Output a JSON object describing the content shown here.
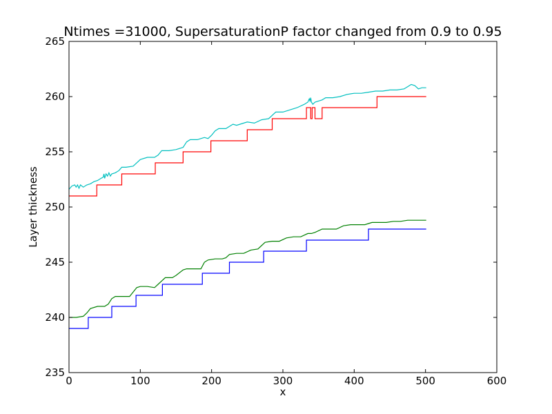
{
  "chart_data": {
    "type": "line",
    "title": "Ntimes =31000, SupersaturationP factor changed from 0.9 to 0.95",
    "xlabel": "x",
    "ylabel": "Layer thickness",
    "xlim": [
      0,
      600
    ],
    "ylim": [
      235,
      265
    ],
    "xticks": [
      0,
      100,
      200,
      300,
      400,
      500,
      600
    ],
    "yticks": [
      235,
      240,
      245,
      250,
      255,
      260,
      265
    ],
    "grid": false,
    "series": [
      {
        "name": "blue-step",
        "color": "#0000ff",
        "style": "step",
        "steps": [
          {
            "x": 0,
            "y": 239
          },
          {
            "x": 27,
            "y": 240
          },
          {
            "x": 60,
            "y": 241
          },
          {
            "x": 94,
            "y": 242
          },
          {
            "x": 131,
            "y": 243
          },
          {
            "x": 187,
            "y": 244
          },
          {
            "x": 225,
            "y": 245
          },
          {
            "x": 273,
            "y": 246
          },
          {
            "x": 333,
            "y": 247
          },
          {
            "x": 420,
            "y": 248
          }
        ],
        "x_end": 501
      },
      {
        "name": "green-smooth",
        "color": "#008000",
        "style": "line",
        "x": [
          0,
          10,
          20,
          25,
          30,
          40,
          50,
          55,
          60,
          65,
          75,
          85,
          90,
          95,
          100,
          110,
          120,
          125,
          130,
          135,
          145,
          150,
          160,
          165,
          175,
          185,
          190,
          195,
          205,
          215,
          220,
          225,
          235,
          245,
          255,
          265,
          270,
          275,
          285,
          295,
          305,
          315,
          325,
          335,
          340,
          345,
          355,
          365,
          375,
          385,
          395,
          405,
          415,
          420,
          425,
          435,
          445,
          455,
          465,
          475,
          485,
          495,
          501
        ],
        "y": [
          240.0,
          240.0,
          240.1,
          240.4,
          240.8,
          241.0,
          241.0,
          241.2,
          241.7,
          241.9,
          241.9,
          241.9,
          242.3,
          242.7,
          242.8,
          242.8,
          242.7,
          243.0,
          243.3,
          243.6,
          243.6,
          243.8,
          244.3,
          244.4,
          244.4,
          244.4,
          245.0,
          245.2,
          245.3,
          245.3,
          245.4,
          245.7,
          245.8,
          245.8,
          246.1,
          246.2,
          246.5,
          246.8,
          246.9,
          246.9,
          247.2,
          247.3,
          247.3,
          247.6,
          247.6,
          247.7,
          248.0,
          248.0,
          248.0,
          248.3,
          248.4,
          248.4,
          248.4,
          248.5,
          248.6,
          248.6,
          248.6,
          248.7,
          248.7,
          248.8,
          248.8,
          248.8,
          248.8
        ]
      },
      {
        "name": "red-step",
        "color": "#ff0000",
        "style": "step",
        "steps": [
          {
            "x": 0,
            "y": 251
          },
          {
            "x": 39,
            "y": 252
          },
          {
            "x": 74,
            "y": 253
          },
          {
            "x": 121,
            "y": 254
          },
          {
            "x": 160,
            "y": 255
          },
          {
            "x": 199,
            "y": 256
          },
          {
            "x": 250,
            "y": 257
          },
          {
            "x": 285,
            "y": 258
          },
          {
            "x": 333,
            "y": 259
          },
          {
            "x": 339,
            "y": 258
          },
          {
            "x": 341,
            "y": 259
          },
          {
            "x": 345,
            "y": 258
          },
          {
            "x": 355,
            "y": 259
          },
          {
            "x": 432,
            "y": 260
          }
        ],
        "x_end": 501
      },
      {
        "name": "cyan-smooth",
        "color": "#00bfbf",
        "style": "line",
        "x": [
          0,
          4,
          8,
          10,
          12,
          14,
          16,
          20,
          25,
          30,
          35,
          40,
          45,
          48,
          49,
          50,
          52,
          54,
          56,
          58,
          60,
          65,
          70,
          74,
          80,
          90,
          100,
          110,
          120,
          125,
          130,
          140,
          150,
          160,
          165,
          170,
          180,
          185,
          190,
          195,
          200,
          205,
          210,
          220,
          230,
          235,
          240,
          250,
          260,
          270,
          280,
          285,
          290,
          300,
          310,
          320,
          330,
          335,
          337,
          338,
          339,
          340,
          342,
          345,
          350,
          355,
          360,
          370,
          380,
          390,
          400,
          410,
          420,
          430,
          440,
          450,
          460,
          470,
          475,
          480,
          485,
          490,
          495,
          501
        ],
        "y": [
          251.6,
          251.9,
          252.0,
          251.8,
          252.0,
          251.7,
          252.0,
          251.8,
          252.0,
          252.1,
          252.3,
          252.4,
          252.6,
          252.7,
          253.0,
          252.6,
          253.0,
          252.8,
          253.1,
          252.8,
          253.0,
          253.1,
          253.3,
          253.6,
          253.6,
          253.7,
          254.3,
          254.5,
          254.5,
          254.7,
          255.1,
          255.1,
          255.2,
          255.4,
          255.9,
          256.1,
          256.1,
          256.2,
          256.3,
          256.2,
          256.5,
          256.9,
          257.1,
          257.1,
          257.5,
          257.4,
          257.5,
          257.7,
          257.6,
          257.9,
          258.0,
          258.3,
          258.6,
          258.6,
          258.8,
          259.0,
          259.3,
          259.5,
          259.8,
          259.6,
          259.9,
          259.5,
          259.3,
          259.5,
          259.6,
          259.7,
          259.9,
          259.9,
          260.0,
          260.2,
          260.3,
          260.3,
          260.4,
          260.5,
          260.5,
          260.6,
          260.6,
          260.7,
          260.9,
          261.1,
          261.0,
          260.7,
          260.8,
          260.8
        ]
      }
    ]
  }
}
